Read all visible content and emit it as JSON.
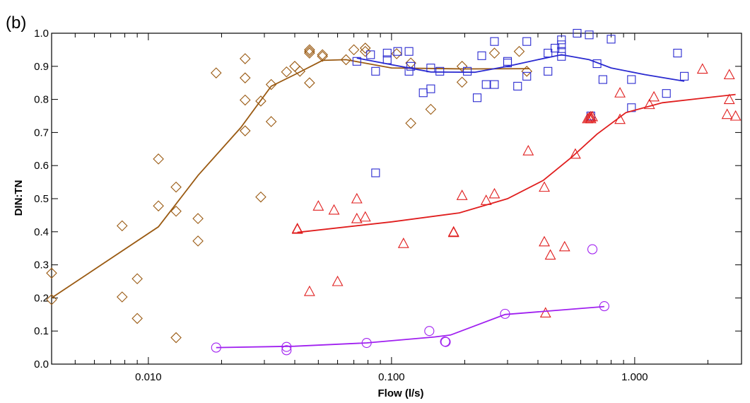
{
  "chart_data": {
    "type": "scatter",
    "panel_label": "(b)",
    "xlabel": "Flow (l/s)",
    "ylabel": "DIN:TN",
    "x_scale": "log",
    "xlim": [
      0.004,
      2.75
    ],
    "ylim": [
      0.0,
      1.0
    ],
    "x_ticks": [
      0.01,
      0.1,
      1.0
    ],
    "x_tick_labels": [
      "0.010",
      "0.100",
      "1.000"
    ],
    "y_ticks": [
      0.0,
      0.1,
      0.2,
      0.3,
      0.4,
      0.5,
      0.6,
      0.7,
      0.8,
      0.9,
      1.0
    ],
    "y_tick_labels": [
      "0.0",
      "0.1",
      "0.2",
      "0.3",
      "0.4",
      "0.5",
      "0.6",
      "0.7",
      "0.8",
      "0.9",
      "1.0"
    ],
    "grid": false,
    "legend": "none",
    "series": [
      {
        "color": "#9a5a12",
        "marker": "diamond",
        "points": [
          [
            0.004,
            0.275
          ],
          [
            0.004,
            0.195
          ],
          [
            0.0078,
            0.418
          ],
          [
            0.0078,
            0.203
          ],
          [
            0.009,
            0.258
          ],
          [
            0.009,
            0.138
          ],
          [
            0.011,
            0.62
          ],
          [
            0.011,
            0.478
          ],
          [
            0.013,
            0.535
          ],
          [
            0.013,
            0.462
          ],
          [
            0.013,
            0.08
          ],
          [
            0.016,
            0.44
          ],
          [
            0.016,
            0.372
          ],
          [
            0.019,
            0.88
          ],
          [
            0.025,
            0.923
          ],
          [
            0.025,
            0.865
          ],
          [
            0.025,
            0.798
          ],
          [
            0.025,
            0.705
          ],
          [
            0.029,
            0.795
          ],
          [
            0.029,
            0.505
          ],
          [
            0.032,
            0.845
          ],
          [
            0.032,
            0.733
          ],
          [
            0.037,
            0.883
          ],
          [
            0.04,
            0.9
          ],
          [
            0.042,
            0.885
          ],
          [
            0.046,
            0.95
          ],
          [
            0.046,
            0.945
          ],
          [
            0.046,
            0.94
          ],
          [
            0.046,
            0.85
          ],
          [
            0.052,
            0.935
          ],
          [
            0.052,
            0.93
          ],
          [
            0.065,
            0.92
          ],
          [
            0.07,
            0.95
          ],
          [
            0.078,
            0.955
          ],
          [
            0.078,
            0.945
          ],
          [
            0.105,
            0.938
          ],
          [
            0.12,
            0.91
          ],
          [
            0.12,
            0.728
          ],
          [
            0.145,
            0.77
          ],
          [
            0.195,
            0.9
          ],
          [
            0.195,
            0.852
          ],
          [
            0.265,
            0.94
          ],
          [
            0.335,
            0.945
          ],
          [
            0.36,
            0.885
          ]
        ],
        "trend": [
          [
            0.004,
            0.2
          ],
          [
            0.011,
            0.415
          ],
          [
            0.016,
            0.57
          ],
          [
            0.024,
            0.715
          ],
          [
            0.032,
            0.84
          ],
          [
            0.04,
            0.875
          ],
          [
            0.052,
            0.918
          ],
          [
            0.065,
            0.92
          ],
          [
            0.1,
            0.895
          ],
          [
            0.2,
            0.892
          ],
          [
            0.37,
            0.893
          ]
        ]
      },
      {
        "color": "#2a2ad0",
        "marker": "square",
        "points": [
          [
            0.072,
            0.915
          ],
          [
            0.082,
            0.935
          ],
          [
            0.086,
            0.578
          ],
          [
            0.086,
            0.885
          ],
          [
            0.096,
            0.94
          ],
          [
            0.096,
            0.92
          ],
          [
            0.106,
            0.945
          ],
          [
            0.118,
            0.945
          ],
          [
            0.118,
            0.885
          ],
          [
            0.12,
            0.9
          ],
          [
            0.135,
            0.82
          ],
          [
            0.145,
            0.895
          ],
          [
            0.145,
            0.832
          ],
          [
            0.158,
            0.885
          ],
          [
            0.205,
            0.885
          ],
          [
            0.225,
            0.805
          ],
          [
            0.235,
            0.932
          ],
          [
            0.245,
            0.845
          ],
          [
            0.265,
            0.975
          ],
          [
            0.265,
            0.845
          ],
          [
            0.3,
            0.915
          ],
          [
            0.3,
            0.91
          ],
          [
            0.33,
            0.84
          ],
          [
            0.36,
            0.87
          ],
          [
            0.36,
            0.975
          ],
          [
            0.44,
            0.94
          ],
          [
            0.44,
            0.885
          ],
          [
            0.47,
            0.955
          ],
          [
            0.5,
            0.965
          ],
          [
            0.5,
            0.98
          ],
          [
            0.5,
            0.945
          ],
          [
            0.5,
            0.93
          ],
          [
            0.58,
            1.0
          ],
          [
            0.65,
            0.995
          ],
          [
            0.7,
            0.908
          ],
          [
            0.74,
            0.86
          ],
          [
            0.8,
            0.982
          ],
          [
            0.97,
            0.86
          ],
          [
            0.97,
            0.775
          ],
          [
            1.35,
            0.818
          ],
          [
            1.5,
            0.94
          ],
          [
            1.6,
            0.87
          ],
          [
            0.66,
            0.75
          ]
        ],
        "trend": [
          [
            0.072,
            0.925
          ],
          [
            0.1,
            0.905
          ],
          [
            0.145,
            0.883
          ],
          [
            0.22,
            0.882
          ],
          [
            0.3,
            0.9
          ],
          [
            0.4,
            0.92
          ],
          [
            0.5,
            0.935
          ],
          [
            0.65,
            0.92
          ],
          [
            0.8,
            0.895
          ],
          [
            1.1,
            0.875
          ],
          [
            1.6,
            0.855
          ]
        ]
      },
      {
        "color": "#e01e1e",
        "marker": "triangle",
        "points": [
          [
            0.041,
            0.41
          ],
          [
            0.041,
            0.408
          ],
          [
            0.046,
            0.22
          ],
          [
            0.05,
            0.478
          ],
          [
            0.058,
            0.466
          ],
          [
            0.06,
            0.25
          ],
          [
            0.072,
            0.5
          ],
          [
            0.072,
            0.44
          ],
          [
            0.078,
            0.445
          ],
          [
            0.112,
            0.365
          ],
          [
            0.18,
            0.4
          ],
          [
            0.18,
            0.398
          ],
          [
            0.195,
            0.51
          ],
          [
            0.245,
            0.495
          ],
          [
            0.265,
            0.515
          ],
          [
            0.365,
            0.645
          ],
          [
            0.425,
            0.535
          ],
          [
            0.425,
            0.37
          ],
          [
            0.43,
            0.155
          ],
          [
            0.45,
            0.33
          ],
          [
            0.515,
            0.355
          ],
          [
            0.57,
            0.635
          ],
          [
            0.64,
            0.742
          ],
          [
            0.65,
            0.745
          ],
          [
            0.66,
            0.742
          ],
          [
            0.66,
            0.748
          ],
          [
            0.67,
            0.748
          ],
          [
            0.87,
            0.82
          ],
          [
            0.87,
            0.74
          ],
          [
            1.15,
            0.785
          ],
          [
            1.2,
            0.808
          ],
          [
            1.9,
            0.892
          ],
          [
            2.4,
            0.755
          ],
          [
            2.45,
            0.875
          ],
          [
            2.45,
            0.8
          ],
          [
            2.6,
            0.75
          ]
        ],
        "trend": [
          [
            0.041,
            0.398
          ],
          [
            0.1,
            0.43
          ],
          [
            0.19,
            0.457
          ],
          [
            0.3,
            0.5
          ],
          [
            0.42,
            0.555
          ],
          [
            0.55,
            0.625
          ],
          [
            0.7,
            0.695
          ],
          [
            0.92,
            0.76
          ],
          [
            1.3,
            0.79
          ],
          [
            2.6,
            0.815
          ]
        ]
      },
      {
        "color": "#a020f0",
        "marker": "circle",
        "points": [
          [
            0.019,
            0.05
          ],
          [
            0.037,
            0.052
          ],
          [
            0.037,
            0.042
          ],
          [
            0.079,
            0.064
          ],
          [
            0.143,
            0.1
          ],
          [
            0.166,
            0.068
          ],
          [
            0.167,
            0.067
          ],
          [
            0.293,
            0.152
          ],
          [
            0.67,
            0.347
          ],
          [
            0.75,
            0.175
          ]
        ],
        "trend": [
          [
            0.019,
            0.05
          ],
          [
            0.04,
            0.054
          ],
          [
            0.079,
            0.064
          ],
          [
            0.15,
            0.082
          ],
          [
            0.175,
            0.088
          ],
          [
            0.293,
            0.15
          ],
          [
            0.75,
            0.174
          ]
        ]
      }
    ]
  }
}
